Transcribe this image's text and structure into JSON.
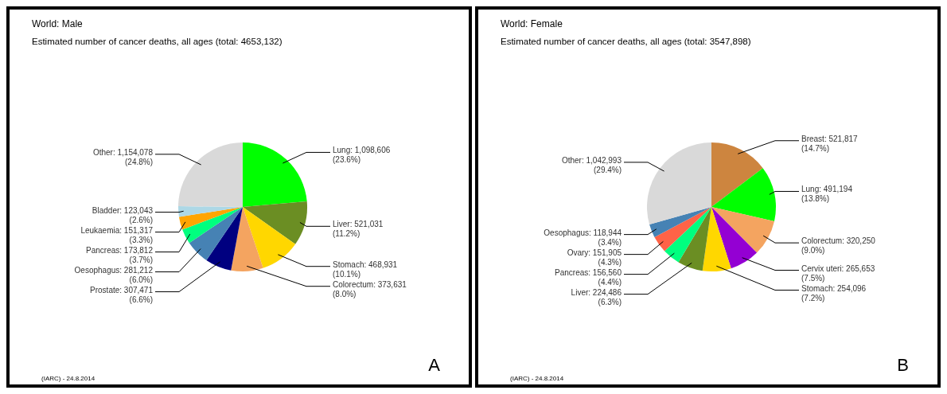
{
  "chart_data": [
    {
      "type": "pie",
      "title": "World: Male",
      "subtitle": "Estimated number of cancer deaths, all ages (total: 4653,132)",
      "categories": [
        "Lung",
        "Liver",
        "Stomach",
        "Colorectum",
        "Prostate",
        "Oesophagus",
        "Pancreas",
        "Leukaemia",
        "Bladder",
        "Other"
      ],
      "values": [
        1098606,
        521031,
        468931,
        373631,
        307471,
        281212,
        173812,
        151317,
        123043,
        1154078
      ],
      "value_labels": [
        "1,098,606 (23.6%)",
        "521,031 (11.2%)",
        "468,931 (10.1%)",
        "373,631 (8.0%)",
        "307,471 (6.6%)",
        "281,212 (6.0%)",
        "173,812 (3.7%)",
        "151,317 (3.3%)",
        "123,043 (2.6%)",
        "1,154,078 (24.8%)"
      ],
      "colors": [
        "#00ff00",
        "#6b8e23",
        "#ffd700",
        "#f4a460",
        "#000080",
        "#4682b4",
        "#00ff7f",
        "#ffa500",
        "#add8e6",
        "#d9d9d9"
      ],
      "annotations": [
        "(IARC) - 24.8.2014",
        "A"
      ]
    },
    {
      "type": "pie",
      "title": "World: Female",
      "subtitle": "Estimated number of cancer deaths, all ages (total: 3547,898)",
      "categories": [
        "Breast",
        "Lung",
        "Colorectum",
        "Cervix uteri",
        "Stomach",
        "Liver",
        "Pancreas",
        "Ovary",
        "Oesophagus",
        "Other"
      ],
      "values": [
        521817,
        491194,
        320250,
        265653,
        254096,
        224486,
        156560,
        151905,
        118944,
        1042993
      ],
      "value_labels": [
        "521,817 (14.7%)",
        "491,194 (13.8%)",
        "320,250 (9.0%)",
        "265,653 (7.5%)",
        "254,096 (7.2%)",
        "224,486 (6.3%)",
        "156,560 (4.4%)",
        "151,905 (4.3%)",
        "118,944 (3.4%)",
        "1,042,993 (29.4%)"
      ],
      "colors": [
        "#cd853f",
        "#00ff00",
        "#f4a460",
        "#9400d3",
        "#ffd700",
        "#6b8e23",
        "#00ff7f",
        "#ff6347",
        "#4682b4",
        "#d9d9d9"
      ],
      "annotations": [
        "(IARC) - 24.8.2014",
        "B"
      ]
    }
  ]
}
